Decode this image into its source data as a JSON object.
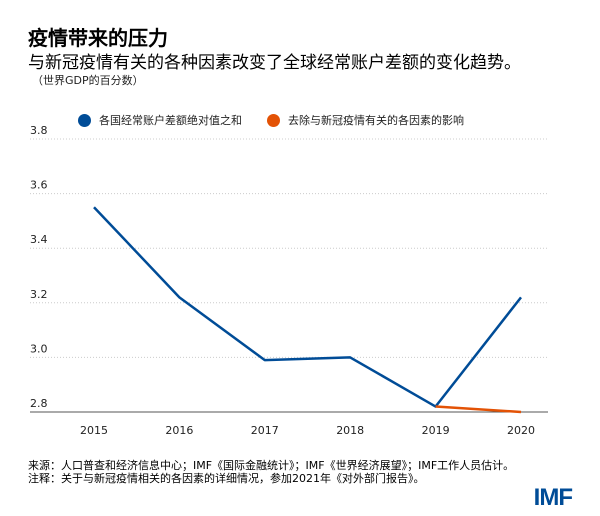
{
  "title": "疫情带来的压力",
  "subtitle": "与新冠疫情有关的各种因素改变了全球经常账户差额的变化趋势。",
  "unit": "（世界GDP的百分数）",
  "source": "来源：人口普查和经济信息中心；IMF《国际金融统计》；IMF《世界经济展望》；IMF工作人员估计。",
  "note": "注释：关于与新冠疫情相关的各因素的详细情况，参加2021年《对外部门报告》。",
  "logo": "IMF",
  "chart_data": {
    "type": "line",
    "x": [
      "2015",
      "2016",
      "2017",
      "2018",
      "2019",
      "2020"
    ],
    "ylim": [
      2.8,
      3.8
    ],
    "yticks": [
      "2.8",
      "3.0",
      "3.2",
      "3.4",
      "3.6",
      "3.8"
    ],
    "grid": true,
    "legend_placement": "top",
    "series": [
      {
        "name": "各国经常账户差额绝对值之和",
        "color": "#004c97",
        "values": [
          3.55,
          3.22,
          2.99,
          3.0,
          2.82,
          3.22
        ]
      },
      {
        "name": "去除与新冠疫情有关的各因素的影响",
        "color": "#e35205",
        "values": [
          null,
          null,
          null,
          null,
          2.82,
          2.8
        ]
      }
    ]
  }
}
